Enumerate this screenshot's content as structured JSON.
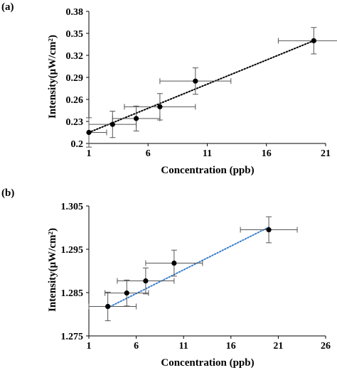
{
  "chart_data": [
    {
      "panel_label": "(a)",
      "type": "scatter",
      "xlabel": "Concentration (ppb)",
      "ylabel": "Intensity(μW/cm²)",
      "xlim": [
        1,
        21
      ],
      "ylim": [
        0.2,
        0.38
      ],
      "xticks": [
        1,
        6,
        11,
        16,
        21
      ],
      "xtick_labels": [
        "1",
        "6",
        "11",
        "16",
        "21"
      ],
      "yticks": [
        0.2,
        0.23,
        0.26,
        0.29,
        0.32,
        0.35,
        0.38
      ],
      "ytick_labels": [
        "0.2",
        "0.23",
        "0.26",
        "0.29",
        "0.32",
        "0.35",
        "0.38"
      ],
      "grid": false,
      "trendline": {
        "style": "dotted",
        "color": "#000000",
        "x": [
          1,
          20
        ],
        "y": [
          0.215,
          0.34
        ]
      },
      "points": [
        {
          "x": 1,
          "y": 0.215,
          "xerr": 1.5,
          "yerr": 0.02
        },
        {
          "x": 3,
          "y": 0.226,
          "xerr": 2,
          "yerr": 0.018
        },
        {
          "x": 5,
          "y": 0.234,
          "xerr": 2,
          "yerr": 0.017
        },
        {
          "x": 7,
          "y": 0.25,
          "xerr": 3,
          "yerr": 0.018
        },
        {
          "x": 10,
          "y": 0.285,
          "xerr": 3,
          "yerr": 0.018
        },
        {
          "x": 20,
          "y": 0.34,
          "xerr": 3,
          "yerr": 0.018
        }
      ]
    },
    {
      "panel_label": "(b)",
      "type": "scatter",
      "xlabel": "Concentration (ppb)",
      "ylabel": "Intensity(μW/cm²)",
      "xlim": [
        1,
        26
      ],
      "ylim": [
        1.275,
        1.305
      ],
      "xticks": [
        1,
        6,
        11,
        16,
        21,
        26
      ],
      "xtick_labels": [
        "1",
        "6",
        "11",
        "16",
        "21",
        "26"
      ],
      "yticks": [
        1.275,
        1.285,
        1.295,
        1.305
      ],
      "ytick_labels": [
        "1.275",
        "1.285",
        "1.295",
        "1.305"
      ],
      "grid": false,
      "trendline": {
        "style": "dotted",
        "color": "#3a7dc9",
        "x": [
          3,
          20
        ],
        "y": [
          1.2815,
          1.3001
        ]
      },
      "points": [
        {
          "x": 3,
          "y": 1.2818,
          "xerr": 3,
          "yerr": 0.0033
        },
        {
          "x": 5,
          "y": 1.2849,
          "xerr": 2.3,
          "yerr": 0.003
        },
        {
          "x": 7,
          "y": 1.2877,
          "xerr": 3,
          "yerr": 0.003
        },
        {
          "x": 10,
          "y": 1.2918,
          "xerr": 3,
          "yerr": 0.003
        },
        {
          "x": 20,
          "y": 1.2995,
          "xerr": 3,
          "yerr": 0.003
        }
      ]
    }
  ]
}
